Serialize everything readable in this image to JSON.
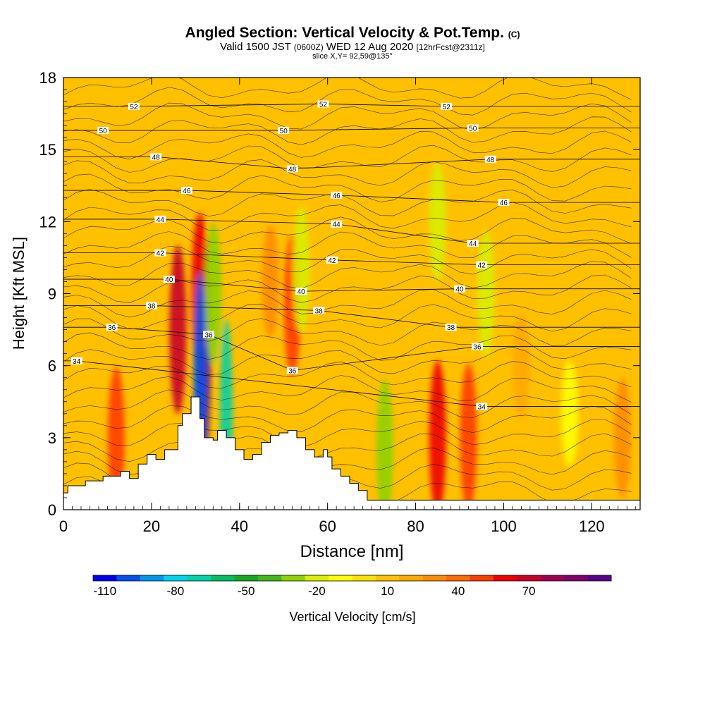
{
  "title": {
    "main": "Angled Section: Vertical Velocity & Pot.Temp.",
    "main_units": "(C)",
    "valid_prefix": "Valid 1500 JST",
    "valid_utc": "(0600Z)",
    "valid_date": "WED 12 Aug 2020",
    "forecast": "[12hrFcst@2311z]",
    "slice": "slice X,Y= 92,59@135°"
  },
  "colorbar": {
    "label": "Vertical Velocity [cm/s]",
    "tick_labels": [
      "-110",
      "-80",
      "-50",
      "-20",
      "10",
      "40",
      "70"
    ],
    "colors": [
      "#0000ee",
      "#0050ee",
      "#0096ee",
      "#00d2ee",
      "#00d2aa",
      "#00c060",
      "#16a820",
      "#40b818",
      "#8ed200",
      "#d8ee00",
      "#ffff00",
      "#ffe000",
      "#ffc000",
      "#ffa800",
      "#ff8c00",
      "#ff6a00",
      "#ff3c00",
      "#ee0000",
      "#c80028",
      "#a00050",
      "#800070",
      "#5a008c"
    ]
  },
  "chart_data": {
    "type": "heatmap",
    "title": "Angled Section: Vertical Velocity & Pot.Temp. (C)",
    "xlabel": "Distance [nm]",
    "ylabel": "Height [Kft MSL]",
    "xlim": [
      0,
      131
    ],
    "ylim": [
      0,
      18
    ],
    "x_ticks": [
      0,
      20,
      40,
      60,
      80,
      100,
      120
    ],
    "y_ticks": [
      0,
      3,
      6,
      9,
      12,
      15,
      18
    ],
    "color_variable": "Vertical Velocity [cm/s]",
    "color_range": [
      -120,
      100
    ],
    "contour_variable": "Pot.Temp. (C)",
    "contour_labels": [
      {
        "x": 16,
        "y": 16.8,
        "text": "52"
      },
      {
        "x": 59,
        "y": 16.9,
        "text": "52"
      },
      {
        "x": 87,
        "y": 16.8,
        "text": "52"
      },
      {
        "x": 9,
        "y": 15.8,
        "text": "50"
      },
      {
        "x": 50,
        "y": 15.8,
        "text": "50"
      },
      {
        "x": 93,
        "y": 15.9,
        "text": "50"
      },
      {
        "x": 21,
        "y": 14.7,
        "text": "48"
      },
      {
        "x": 52,
        "y": 14.2,
        "text": "48"
      },
      {
        "x": 97,
        "y": 14.6,
        "text": "48"
      },
      {
        "x": 28,
        "y": 13.3,
        "text": "46"
      },
      {
        "x": 62,
        "y": 13.1,
        "text": "46"
      },
      {
        "x": 100,
        "y": 12.8,
        "text": "46"
      },
      {
        "x": 22,
        "y": 12.1,
        "text": "44"
      },
      {
        "x": 62,
        "y": 11.9,
        "text": "44"
      },
      {
        "x": 93,
        "y": 11.1,
        "text": "44"
      },
      {
        "x": 22,
        "y": 10.7,
        "text": "42"
      },
      {
        "x": 61,
        "y": 10.4,
        "text": "42"
      },
      {
        "x": 95,
        "y": 10.2,
        "text": "42"
      },
      {
        "x": 24,
        "y": 9.6,
        "text": "40"
      },
      {
        "x": 54,
        "y": 9.1,
        "text": "40"
      },
      {
        "x": 90,
        "y": 9.2,
        "text": "40"
      },
      {
        "x": 20,
        "y": 8.5,
        "text": "38"
      },
      {
        "x": 58,
        "y": 8.3,
        "text": "38"
      },
      {
        "x": 88,
        "y": 7.6,
        "text": "38"
      },
      {
        "x": 11,
        "y": 7.6,
        "text": "36"
      },
      {
        "x": 33,
        "y": 7.3,
        "text": "36"
      },
      {
        "x": 52,
        "y": 5.8,
        "text": "36"
      },
      {
        "x": 94,
        "y": 6.8,
        "text": "36"
      },
      {
        "x": 3,
        "y": 6.2,
        "text": "34"
      },
      {
        "x": 95,
        "y": 4.3,
        "text": "34"
      }
    ],
    "cells": [
      {
        "x": 26,
        "y": 7.5,
        "value": 60
      },
      {
        "x": 32,
        "y": 6.5,
        "value": 90
      },
      {
        "x": 31,
        "y": 9,
        "value": 55
      },
      {
        "x": 31,
        "y": 5.5,
        "value": -110
      },
      {
        "x": 37,
        "y": 3.8,
        "value": -80
      },
      {
        "x": 34,
        "y": 9,
        "value": -40
      },
      {
        "x": 47,
        "y": 9.5,
        "value": 20
      },
      {
        "x": 52,
        "y": 8.5,
        "value": 40
      },
      {
        "x": 54,
        "y": 10,
        "value": -30
      },
      {
        "x": 12,
        "y": 3,
        "value": 40
      },
      {
        "x": 73,
        "y": 2.5,
        "value": -40
      },
      {
        "x": 85,
        "y": 3,
        "value": 50
      },
      {
        "x": 92,
        "y": 3,
        "value": 45
      },
      {
        "x": 85,
        "y": 12,
        "value": -25
      },
      {
        "x": 96,
        "y": 9,
        "value": -30
      },
      {
        "x": 104,
        "y": 6,
        "value": 15
      },
      {
        "x": 115,
        "y": 4,
        "value": -15
      },
      {
        "x": 127,
        "y": 3,
        "value": 25
      }
    ],
    "terrain_x": [
      0,
      1,
      5,
      9,
      13,
      15,
      17,
      19,
      21,
      23,
      26,
      27,
      29,
      31,
      32,
      34,
      35,
      37,
      39,
      41,
      43,
      45,
      47,
      49,
      51,
      53,
      55,
      57,
      59,
      60,
      61,
      63,
      65,
      67,
      69,
      131
    ],
    "terrain_y": [
      0.7,
      1.0,
      1.2,
      1.4,
      1.6,
      1.3,
      1.9,
      2.3,
      2.1,
      2.5,
      3.5,
      4.0,
      4.7,
      3.8,
      3.0,
      2.9,
      3.3,
      3.0,
      2.5,
      2.1,
      2.3,
      2.8,
      3.1,
      3.2,
      3.3,
      3.0,
      2.5,
      2.2,
      2.5,
      2.2,
      1.7,
      1.4,
      1.1,
      0.8,
      0.4,
      0.3
    ]
  }
}
